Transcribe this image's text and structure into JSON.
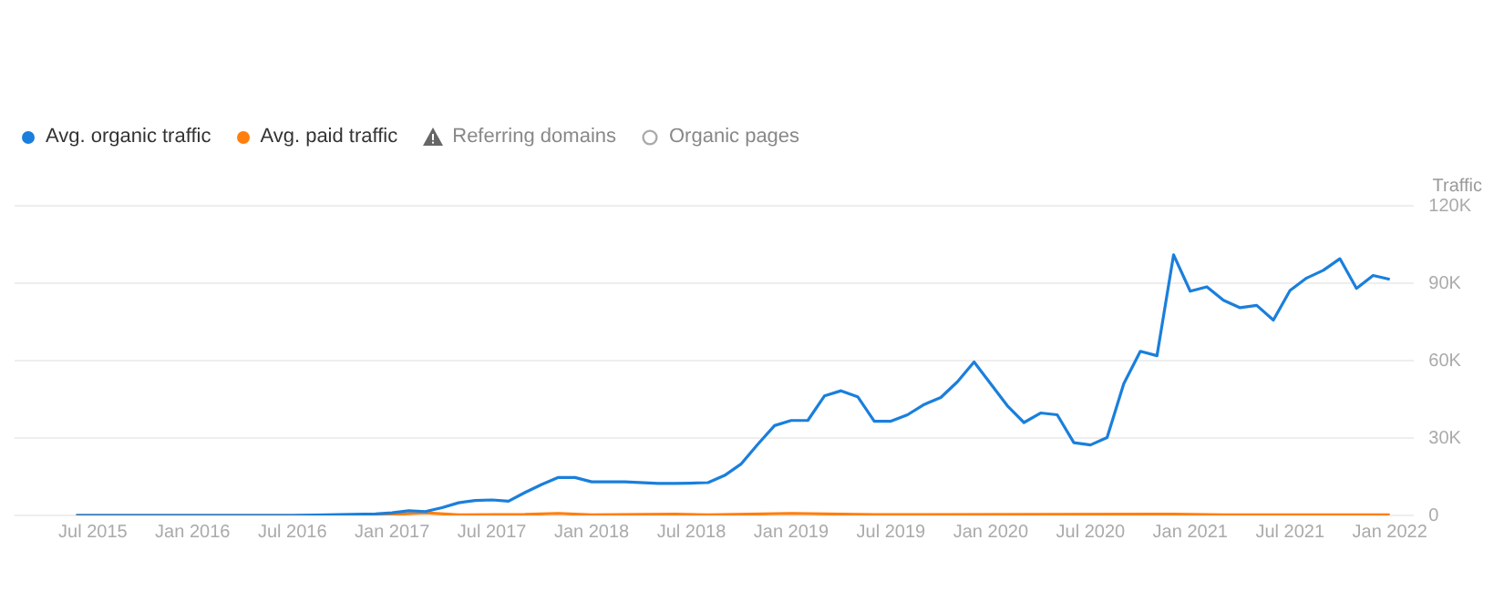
{
  "chart_data": {
    "type": "line",
    "ylabel": "Traffic",
    "legend": "top left",
    "grid": "y",
    "marker": "none",
    "line_style": "solid",
    "annotations": [
      "Referring domains",
      "Organic pages"
    ],
    "xlim": [
      "2015-02-10",
      "2022-02-15"
    ],
    "ylim": [
      0,
      120000
    ],
    "xticks": [
      {
        "value": "2015-07",
        "label": "Jul 2015"
      },
      {
        "value": "2016-01",
        "label": "Jan 2016"
      },
      {
        "value": "2016-07",
        "label": "Jul 2016"
      },
      {
        "value": "2017-01",
        "label": "Jan 2017"
      },
      {
        "value": "2017-07",
        "label": "Jul 2017"
      },
      {
        "value": "2018-01",
        "label": "Jan 2018"
      },
      {
        "value": "2018-07",
        "label": "Jul 2018"
      },
      {
        "value": "2019-01",
        "label": "Jan 2019"
      },
      {
        "value": "2019-07",
        "label": "Jul 2019"
      },
      {
        "value": "2020-01",
        "label": "Jan 2020"
      },
      {
        "value": "2020-07",
        "label": "Jul 2020"
      },
      {
        "value": "2021-01",
        "label": "Jan 2021"
      },
      {
        "value": "2021-07",
        "label": "Jul 2021"
      },
      {
        "value": "2022-01",
        "label": "Jan 2022"
      }
    ],
    "yticks": [
      0,
      {
        "value": 30000,
        "label": "30K"
      },
      {
        "value": 60000,
        "label": "60K"
      },
      {
        "value": 90000,
        "label": "90K"
      },
      {
        "value": 120000,
        "label": "120K"
      }
    ],
    "series": [
      {
        "name": "Avg. organic traffic",
        "color": "#1a7fdc",
        "x": [
          "2015-06",
          "2016-07",
          "2016-12",
          "2017-01",
          "2017-02",
          "2017-03",
          "2017-04",
          "2017-05",
          "2017-06",
          "2017-07",
          "2017-08",
          "2017-09",
          "2017-10",
          "2017-11",
          "2017-12",
          "2018-01",
          "2018-03",
          "2018-05",
          "2018-06",
          "2018-07",
          "2018-08",
          "2018-09",
          "2018-10",
          "2018-11",
          "2018-12",
          "2019-01",
          "2019-02",
          "2019-03",
          "2019-04",
          "2019-05",
          "2019-06",
          "2019-07",
          "2019-08",
          "2019-09",
          "2019-10",
          "2019-11",
          "2019-12",
          "2020-01",
          "2020-02",
          "2020-03",
          "2020-04",
          "2020-05",
          "2020-06",
          "2020-07",
          "2020-08",
          "2020-09",
          "2020-10",
          "2020-11",
          "2020-12",
          "2021-01",
          "2021-02",
          "2021-03",
          "2021-04",
          "2021-05",
          "2021-06",
          "2021-07",
          "2021-08",
          "2021-09",
          "2021-10",
          "2021-11",
          "2021-12",
          "2022-01"
        ],
        "values": [
          0,
          0,
          600,
          1000,
          1800,
          1500,
          3000,
          4900,
          5800,
          6000,
          5500,
          8900,
          12000,
          14700,
          14700,
          13000,
          13000,
          12400,
          12400,
          12500,
          12700,
          15500,
          20000,
          27600,
          34800,
          36800,
          36800,
          46300,
          48300,
          46000,
          36500,
          36500,
          39000,
          43000,
          45700,
          51800,
          59500,
          51000,
          42500,
          36000,
          39700,
          39000,
          28200,
          27300,
          30200,
          51000,
          63600,
          61900,
          101000,
          86900,
          88600,
          83400,
          80500,
          81400,
          75700,
          87200,
          92000,
          95000,
          99500,
          88000,
          93000,
          91500
        ]
      },
      {
        "name": "Avg. paid traffic",
        "color": "#ff7f0e",
        "x": [
          "2015-06",
          "2016-12",
          "2017-03",
          "2017-05",
          "2017-09",
          "2017-11",
          "2018-01",
          "2018-06",
          "2018-08",
          "2019-01",
          "2019-06",
          "2020-12",
          "2021-03",
          "2022-01"
        ],
        "values": [
          0,
          0,
          1000,
          200,
          400,
          800,
          200,
          500,
          200,
          800,
          300,
          500,
          200,
          200
        ]
      }
    ]
  }
}
